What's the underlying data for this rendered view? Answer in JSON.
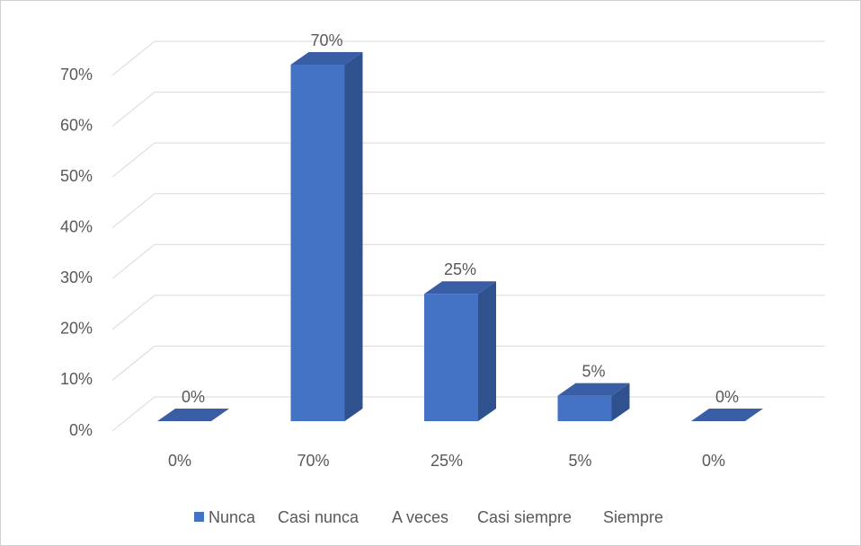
{
  "chart_data": {
    "type": "bar3d",
    "categories": [
      "0%",
      "70%",
      "25%",
      "5%",
      "0%"
    ],
    "values": [
      0,
      70,
      25,
      5,
      0
    ],
    "value_labels": [
      "0%",
      "70%",
      "25%",
      "5%",
      "0%"
    ],
    "legend": [
      "Nunca",
      "Casi nunca",
      "A veces",
      "Casi siempre",
      "Siempre"
    ],
    "color": "#4472c4",
    "ylim": [
      0,
      70
    ],
    "yticks": [
      {
        "value": 0,
        "label": "0%"
      },
      {
        "value": 10,
        "label": "10%"
      },
      {
        "value": 20,
        "label": "20%"
      },
      {
        "value": 30,
        "label": "30%"
      },
      {
        "value": 40,
        "label": "40%"
      },
      {
        "value": 50,
        "label": "50%"
      },
      {
        "value": 60,
        "label": "60%"
      },
      {
        "value": 70,
        "label": "70%"
      }
    ],
    "grid": true
  }
}
